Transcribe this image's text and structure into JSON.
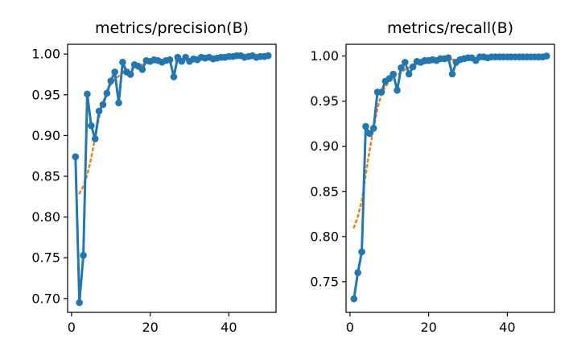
{
  "chart_data": [
    {
      "type": "line",
      "title": "metrics/precision(B)",
      "xlabel": "",
      "ylabel": "",
      "xlim": [
        -1,
        52
      ],
      "ylim": [
        0.683,
        1.012
      ],
      "xticks": [
        0,
        20,
        40
      ],
      "yticks": [
        0.7,
        0.75,
        0.8,
        0.85,
        0.9,
        0.95,
        1.0
      ],
      "ytick_labels": [
        "0.70",
        "0.75",
        "0.80",
        "0.85",
        "0.90",
        "0.95",
        "1.00"
      ],
      "grid": false,
      "series": [
        {
          "style": "line-marker",
          "color": "#1f77b4",
          "x": [
            1,
            2,
            3,
            4,
            5,
            6,
            7,
            8,
            9,
            10,
            11,
            12,
            13,
            14,
            15,
            16,
            17,
            18,
            19,
            20,
            21,
            22,
            23,
            24,
            25,
            26,
            27,
            28,
            29,
            30,
            31,
            32,
            33,
            34,
            35,
            36,
            37,
            38,
            39,
            40,
            41,
            42,
            43,
            44,
            45,
            46,
            47,
            48,
            49,
            50
          ],
          "y": [
            0.874,
            0.695,
            0.753,
            0.951,
            0.912,
            0.896,
            0.93,
            0.938,
            0.952,
            0.967,
            0.978,
            0.94,
            0.99,
            0.978,
            0.975,
            0.987,
            0.985,
            0.981,
            0.992,
            0.991,
            0.993,
            0.992,
            0.99,
            0.992,
            0.993,
            0.972,
            0.996,
            0.991,
            0.996,
            0.991,
            0.994,
            0.993,
            0.996,
            0.995,
            0.996,
            0.994,
            0.995,
            0.996,
            0.996,
            0.997,
            0.997,
            0.998,
            0.998,
            0.996,
            0.997,
            0.998,
            0.996,
            0.997,
            0.997,
            0.998
          ]
        },
        {
          "style": "dotted",
          "color": "#ff7f0e",
          "x": [
            2,
            3,
            4,
            5,
            6,
            7,
            8,
            9,
            10,
            11,
            12,
            13,
            14,
            15,
            16,
            17,
            18,
            19,
            20,
            21,
            22,
            23,
            24,
            25,
            26,
            27,
            28,
            29,
            30,
            31,
            32,
            33,
            34,
            35,
            36,
            37,
            38,
            39,
            40,
            41,
            42,
            43,
            44,
            45,
            46,
            47,
            48,
            49,
            50
          ],
          "y": [
            0.829,
            0.838,
            0.852,
            0.872,
            0.898,
            0.922,
            0.941,
            0.954,
            0.963,
            0.969,
            0.973,
            0.977,
            0.98,
            0.982,
            0.984,
            0.986,
            0.987,
            0.988,
            0.989,
            0.99,
            0.99,
            0.991,
            0.991,
            0.991,
            0.992,
            0.992,
            0.992,
            0.993,
            0.993,
            0.993,
            0.993,
            0.994,
            0.994,
            0.994,
            0.994,
            0.995,
            0.995,
            0.995,
            0.995,
            0.995,
            0.995,
            0.996,
            0.996,
            0.996,
            0.996,
            0.996,
            0.996,
            0.996,
            0.996
          ]
        }
      ]
    },
    {
      "type": "line",
      "title": "metrics/recall(B)",
      "xlabel": "",
      "ylabel": "",
      "xlim": [
        -1,
        52
      ],
      "ylim": [
        0.716,
        1.013
      ],
      "xticks": [
        0,
        20,
        40
      ],
      "yticks": [
        0.75,
        0.8,
        0.85,
        0.9,
        0.95,
        1.0
      ],
      "ytick_labels": [
        "0.75",
        "0.80",
        "0.85",
        "0.90",
        "0.95",
        "1.00"
      ],
      "grid": false,
      "series": [
        {
          "style": "line-marker",
          "color": "#1f77b4",
          "x": [
            1,
            2,
            3,
            4,
            5,
            6,
            7,
            8,
            9,
            10,
            11,
            12,
            13,
            14,
            15,
            16,
            17,
            18,
            19,
            20,
            21,
            22,
            23,
            24,
            25,
            26,
            27,
            28,
            29,
            30,
            31,
            32,
            33,
            34,
            35,
            36,
            37,
            38,
            39,
            40,
            41,
            42,
            43,
            44,
            45,
            46,
            47,
            48,
            49,
            50
          ],
          "y": [
            0.731,
            0.76,
            0.783,
            0.922,
            0.914,
            0.92,
            0.96,
            0.96,
            0.972,
            0.975,
            0.98,
            0.962,
            0.987,
            0.993,
            0.98,
            0.988,
            0.994,
            0.993,
            0.995,
            0.995,
            0.996,
            0.995,
            0.997,
            0.997,
            0.998,
            0.98,
            0.993,
            0.996,
            0.997,
            0.998,
            0.998,
            0.995,
            0.999,
            0.999,
            0.998,
            0.999,
            0.999,
            0.999,
            0.999,
            0.999,
            0.999,
            0.999,
            0.999,
            0.999,
            0.999,
            0.999,
            0.999,
            0.999,
            0.999,
            1.0
          ]
        },
        {
          "style": "dotted",
          "color": "#ff7f0e",
          "x": [
            1,
            2,
            3,
            4,
            5,
            6,
            7,
            8,
            9,
            10,
            11,
            12,
            13,
            14,
            15,
            16,
            17,
            18,
            19,
            20,
            21,
            22,
            23,
            24,
            25,
            26,
            27,
            28,
            29,
            30,
            31,
            32,
            33,
            34,
            35,
            36,
            37,
            38,
            39,
            40,
            41,
            42,
            43,
            44,
            45,
            46,
            47,
            48,
            49,
            50
          ],
          "y": [
            0.81,
            0.822,
            0.84,
            0.868,
            0.896,
            0.92,
            0.942,
            0.958,
            0.966,
            0.972,
            0.976,
            0.979,
            0.982,
            0.985,
            0.987,
            0.989,
            0.99,
            0.991,
            0.992,
            0.993,
            0.993,
            0.994,
            0.995,
            0.995,
            0.995,
            0.996,
            0.996,
            0.996,
            0.997,
            0.997,
            0.997,
            0.997,
            0.997,
            0.998,
            0.998,
            0.998,
            0.998,
            0.998,
            0.998,
            0.998,
            0.998,
            0.999,
            0.999,
            0.999,
            0.999,
            0.999,
            0.999,
            0.999,
            0.999,
            0.999
          ]
        }
      ]
    }
  ]
}
